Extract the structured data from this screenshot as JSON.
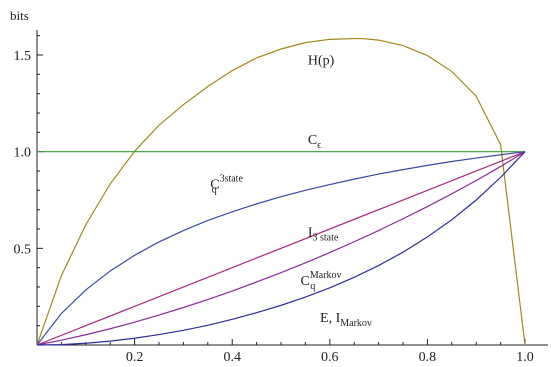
{
  "chart_data": {
    "type": "line",
    "title": "",
    "xlabel": "",
    "ylabel": "bits",
    "xlim": [
      0,
      1
    ],
    "ylim": [
      0,
      1.6
    ],
    "x_ticks": [
      {
        "value": 0.2,
        "label": "0.2"
      },
      {
        "value": 0.4,
        "label": "0.4"
      },
      {
        "value": 0.6,
        "label": "0.6"
      },
      {
        "value": 0.8,
        "label": "0.8"
      },
      {
        "value": 1.0,
        "label": "1.0"
      }
    ],
    "y_ticks": [
      {
        "value": 0.5,
        "label": "0.5"
      },
      {
        "value": 1.0,
        "label": "1.0"
      },
      {
        "value": 1.5,
        "label": "1.5"
      }
    ],
    "grid": false,
    "legend": "none (curves labeled inline)",
    "series": [
      {
        "key": "H",
        "color": "#a08a1e",
        "x": [
          0,
          0.05,
          0.1,
          0.15,
          0.2,
          0.25,
          0.3,
          0.35,
          0.4,
          0.45,
          0.5,
          0.55,
          0.6,
          0.65,
          0.6667,
          0.7,
          0.75,
          0.8,
          0.85,
          0.9,
          0.95,
          1.0
        ],
        "y": [
          0,
          0.359,
          0.622,
          0.833,
          1.002,
          1.137,
          1.243,
          1.337,
          1.419,
          1.485,
          1.531,
          1.564,
          1.581,
          1.585,
          1.585,
          1.577,
          1.549,
          1.497,
          1.415,
          1.287,
          1.036,
          0
        ]
      },
      {
        "key": "Ce",
        "color": "#3a9a3a",
        "x": [
          0,
          1.0
        ],
        "y": [
          1.0,
          1.0
        ]
      },
      {
        "key": "Cq3",
        "color": "#3a4aa8",
        "x": [
          0,
          0.05,
          0.1,
          0.15,
          0.2,
          0.25,
          0.3,
          0.35,
          0.4,
          0.45,
          0.5,
          0.55,
          0.6,
          0.65,
          0.7,
          0.75,
          0.8,
          0.85,
          0.9,
          0.95,
          1.0
        ],
        "y": [
          0,
          0.163,
          0.285,
          0.383,
          0.464,
          0.533,
          0.592,
          0.644,
          0.689,
          0.73,
          0.767,
          0.8,
          0.83,
          0.858,
          0.884,
          0.907,
          0.929,
          0.949,
          0.967,
          0.984,
          1.0
        ]
      },
      {
        "key": "I3",
        "color": "#a8247a",
        "x": [
          0,
          1.0
        ],
        "y": [
          0,
          1.0
        ]
      },
      {
        "key": "CqM",
        "color": "#8a2a9a",
        "x": [
          0,
          0.05,
          0.1,
          0.15,
          0.2,
          0.25,
          0.3,
          0.35,
          0.4,
          0.45,
          0.5,
          0.55,
          0.6,
          0.65,
          0.7,
          0.75,
          0.8,
          0.85,
          0.9,
          0.95,
          1.0
        ],
        "y": [
          0,
          0.025,
          0.053,
          0.084,
          0.118,
          0.155,
          0.194,
          0.235,
          0.279,
          0.326,
          0.374,
          0.425,
          0.478,
          0.534,
          0.592,
          0.653,
          0.716,
          0.782,
          0.851,
          0.923,
          1.0
        ]
      },
      {
        "key": "E",
        "color": "#2e2e9a",
        "x": [
          0,
          0.05,
          0.1,
          0.15,
          0.2,
          0.25,
          0.3,
          0.35,
          0.4,
          0.45,
          0.5,
          0.55,
          0.6,
          0.65,
          0.7,
          0.75,
          0.8,
          0.85,
          0.9,
          0.95,
          1.0
        ],
        "y": [
          0,
          0.002,
          0.009,
          0.02,
          0.035,
          0.054,
          0.076,
          0.102,
          0.133,
          0.167,
          0.205,
          0.248,
          0.296,
          0.35,
          0.411,
          0.48,
          0.559,
          0.648,
          0.75,
          0.867,
          1.0
        ]
      }
    ],
    "annotations": [
      {
        "key": "H",
        "main": "H(p)",
        "sup": "",
        "sub": "",
        "x": 0.555,
        "y": 1.45
      },
      {
        "key": "Ce",
        "main": "C",
        "sup": "",
        "sub": "ϵ",
        "x": 0.555,
        "y": 1.04
      },
      {
        "key": "Cq3",
        "main": "C",
        "sup": "3state",
        "sub": "q",
        "x": 0.355,
        "y": 0.81
      },
      {
        "key": "I3",
        "main": "I",
        "sup": "",
        "sub": "3 state",
        "x": 0.555,
        "y": 0.56
      },
      {
        "key": "CqM",
        "main": "C",
        "sup": "Markov",
        "sub": "q",
        "x": 0.54,
        "y": 0.31
      },
      {
        "key": "E",
        "main": "E, I",
        "sup": "",
        "sub": "Markov",
        "x": 0.58,
        "y": 0.12
      }
    ]
  }
}
